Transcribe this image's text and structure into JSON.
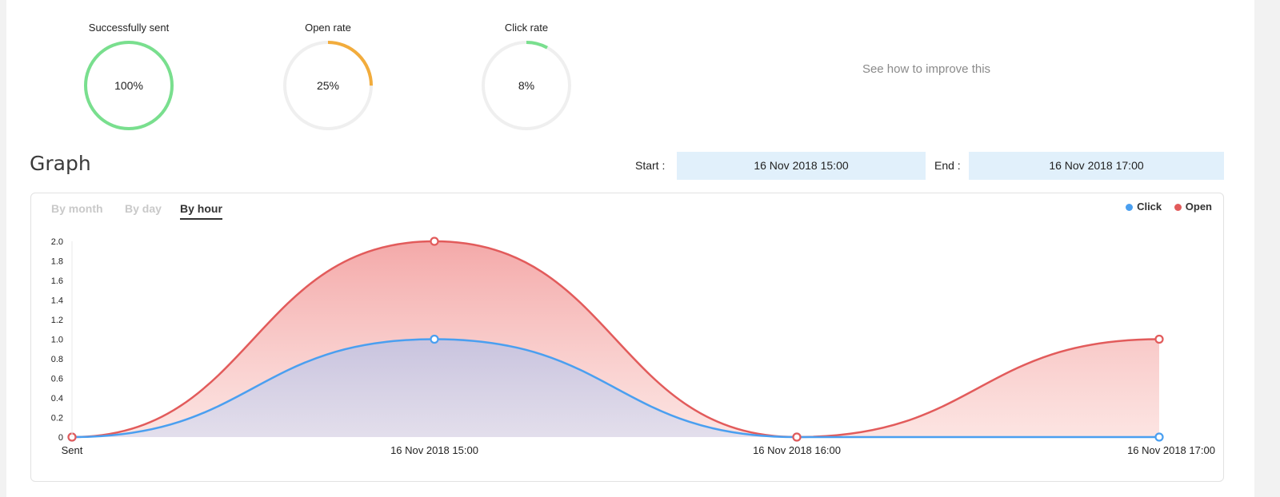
{
  "stats": [
    {
      "label": "Successfully sent",
      "value_text": "100%",
      "fraction": 1.0,
      "color": "#79df8e"
    },
    {
      "label": "Open rate",
      "value_text": "25%",
      "fraction": 0.25,
      "color": "#f2ac3c"
    },
    {
      "label": "Click rate",
      "value_text": "8%",
      "fraction": 0.08,
      "color": "#79df8e"
    }
  ],
  "improve_link": "See how to improve this",
  "graph": {
    "title": "Graph",
    "start_label": "Start :",
    "start_value": "16 Nov 2018 15:00",
    "end_label": "End :",
    "end_value": "16 Nov 2018 17:00"
  },
  "tabs": [
    {
      "label": "By month",
      "active": false
    },
    {
      "label": "By day",
      "active": false
    },
    {
      "label": "By hour",
      "active": true
    }
  ],
  "chart_data": {
    "type": "area",
    "categories": [
      "Sent",
      "16 Nov 2018 15:00",
      "16 Nov 2018 16:00",
      "16 Nov 2018 17:00"
    ],
    "series": [
      {
        "name": "Click",
        "values": [
          0,
          1,
          0,
          0
        ],
        "color": "#4a9ff0"
      },
      {
        "name": "Open",
        "values": [
          0,
          2,
          0,
          1
        ],
        "color": "#e25b5b"
      }
    ],
    "yticks": [
      "0",
      "0.2",
      "0.4",
      "0.6",
      "0.8",
      "1.0",
      "1.2",
      "1.4",
      "1.6",
      "1.8",
      "2.0"
    ],
    "ylim": [
      0,
      2
    ],
    "legend_position": "top-right",
    "grid": false
  }
}
